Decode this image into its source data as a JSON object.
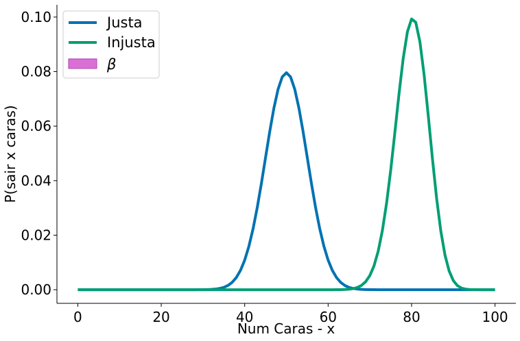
{
  "chart_data": {
    "type": "line",
    "title": "",
    "xlabel": "Num Caras - x",
    "ylabel": "P(sair x caras)",
    "xlim": [
      -5,
      105
    ],
    "ylim": [
      -0.005,
      0.1045
    ],
    "xticks": [
      0,
      20,
      40,
      60,
      80,
      100
    ],
    "xtick_labels": [
      "0",
      "20",
      "40",
      "60",
      "80",
      "100"
    ],
    "yticks": [
      0.0,
      0.02,
      0.04,
      0.06,
      0.08,
      0.1
    ],
    "ytick_labels": [
      "0.00",
      "0.02",
      "0.04",
      "0.06",
      "0.08",
      "0.10"
    ],
    "grid": false,
    "legend_position": "top-left",
    "legend": [
      {
        "label": "Justa",
        "kind": "line",
        "color": "#0072B2"
      },
      {
        "label": "Injusta",
        "kind": "line",
        "color": "#009E73"
      },
      {
        "label": "β",
        "kind": "patch",
        "color": "#DA70D6"
      }
    ],
    "series": [
      {
        "name": "Justa",
        "color": "#0072B2",
        "n": 100,
        "p": 0.5,
        "x_range": [
          0,
          100
        ]
      },
      {
        "name": "Injusta",
        "color": "#009E73",
        "n": 100,
        "p": 0.8,
        "x_range": [
          0,
          100
        ]
      }
    ]
  }
}
